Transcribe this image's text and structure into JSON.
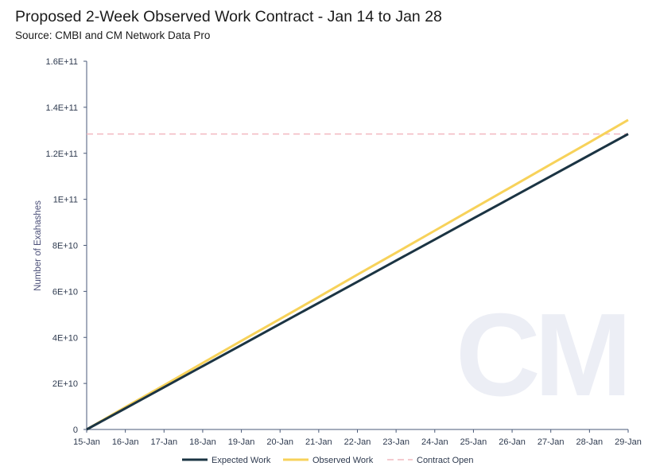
{
  "title": "Proposed 2-Week Observed Work Contract - Jan 14 to Jan 28",
  "subtitle": "Source: CMBI and CM Network Data Pro",
  "watermark": "CM",
  "colors": {
    "expected": "#1b3443",
    "observed": "#f7d25a",
    "contract": "#f2b8bf",
    "axis": "#4a5a78",
    "watermark": "#eceef5"
  },
  "chart_data": {
    "type": "line",
    "title": "Proposed 2-Week Observed Work Contract - Jan 14 to Jan 28",
    "subtitle": "Source: CMBI and CM Network Data Pro",
    "xlabel": "",
    "ylabel": "Number of Exahashes",
    "categories": [
      "15-Jan",
      "16-Jan",
      "17-Jan",
      "18-Jan",
      "19-Jan",
      "20-Jan",
      "21-Jan",
      "22-Jan",
      "23-Jan",
      "24-Jan",
      "25-Jan",
      "26-Jan",
      "27-Jan",
      "28-Jan",
      "29-Jan"
    ],
    "ylim": [
      0,
      160000000000
    ],
    "yticks": [
      {
        "value": 0,
        "label": "0"
      },
      {
        "value": 20000000000,
        "label": "2E+10"
      },
      {
        "value": 40000000000,
        "label": "4E+10"
      },
      {
        "value": 60000000000,
        "label": "6E+10"
      },
      {
        "value": 80000000000,
        "label": "8E+10"
      },
      {
        "value": 100000000000,
        "label": "1E+11"
      },
      {
        "value": 120000000000,
        "label": "1.2E+11"
      },
      {
        "value": 140000000000,
        "label": "1.4E+11"
      },
      {
        "value": 160000000000,
        "label": "1.6E+11"
      }
    ],
    "grid": false,
    "legend_position": "bottom",
    "series": [
      {
        "name": "Expected Work",
        "style": "solid",
        "color": "#1b3443",
        "values": [
          0,
          9170000000,
          18340000000,
          27510000000,
          36680000000,
          45850000000,
          55020000000,
          64190000000,
          73360000000,
          82530000000,
          91700000000,
          100870000000,
          110040000000,
          119210000000,
          128380000000
        ]
      },
      {
        "name": "Observed Work",
        "style": "solid",
        "color": "#f7d25a",
        "values": [
          0,
          9700000000,
          19200000000,
          28900000000,
          38500000000,
          48000000000,
          57600000000,
          67300000000,
          76800000000,
          86400000000,
          96000000000,
          105600000000,
          115200000000,
          124800000000,
          134500000000
        ]
      },
      {
        "name": "Contract Open",
        "style": "dashed",
        "color": "#f2b8bf",
        "values": [
          128380000000,
          128380000000,
          128380000000,
          128380000000,
          128380000000,
          128380000000,
          128380000000,
          128380000000,
          128380000000,
          128380000000,
          128380000000,
          128380000000,
          128380000000,
          128380000000,
          128380000000
        ]
      }
    ]
  }
}
